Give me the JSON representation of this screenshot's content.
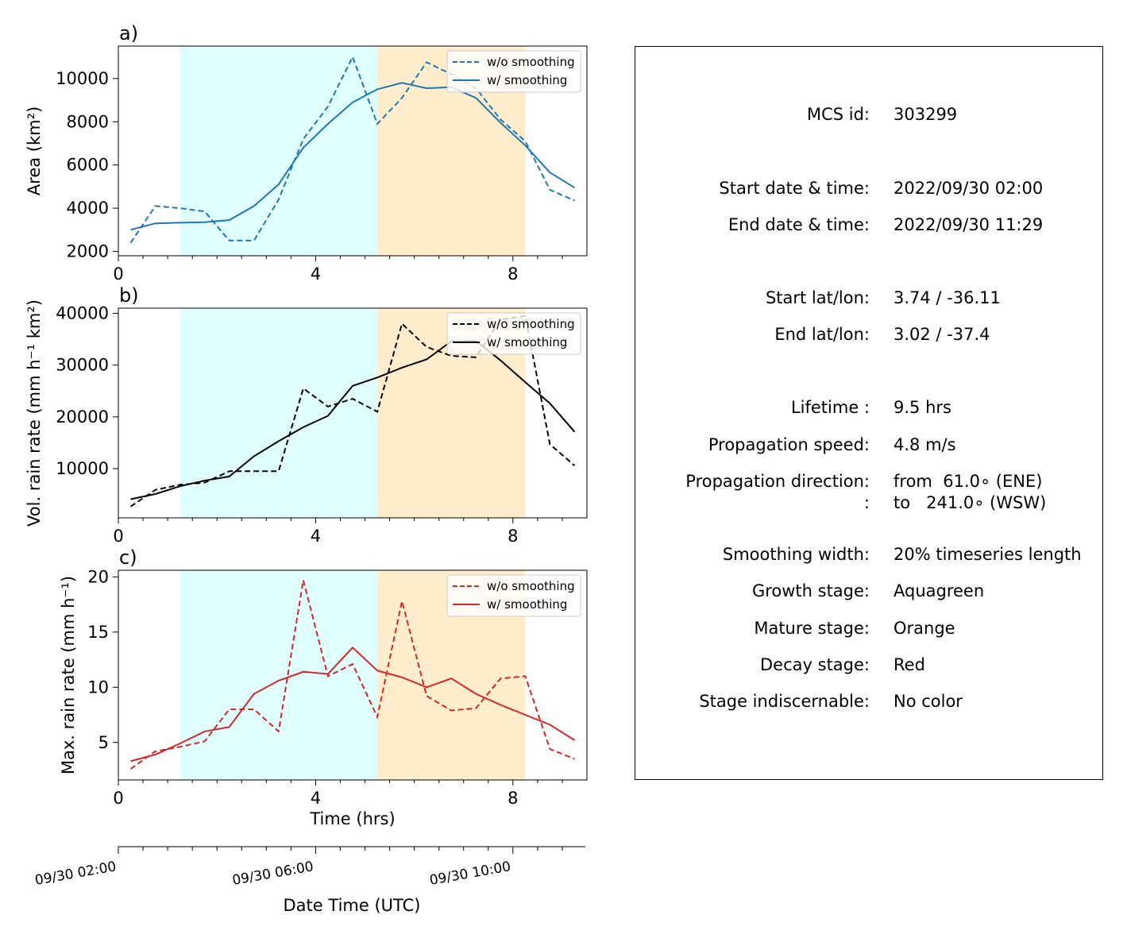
{
  "chart_data": [
    {
      "type": "line",
      "panel_label": "a)",
      "ylabel": "Area  (km²)",
      "xlabel": "",
      "xlim": [
        0,
        9.5
      ],
      "ylim": [
        1800,
        11500
      ],
      "xticks": [
        0,
        4,
        8
      ],
      "yticks": [
        2000,
        4000,
        6000,
        8000,
        10000
      ],
      "x": [
        0.25,
        0.75,
        1.25,
        1.75,
        2.25,
        2.75,
        3.25,
        3.75,
        4.25,
        4.75,
        5.25,
        5.75,
        6.25,
        6.75,
        7.25,
        7.75,
        8.25,
        8.75,
        9.25
      ],
      "color": "#1f77b4",
      "series": [
        {
          "name": "w/o smoothing",
          "dash": true,
          "values": [
            2400,
            4100,
            4000,
            3850,
            2500,
            2500,
            4400,
            7200,
            8700,
            11000,
            7900,
            9100,
            10750,
            10200,
            9550,
            8100,
            7100,
            4850,
            4350
          ]
        },
        {
          "name": "w/ smoothing",
          "dash": false,
          "values": [
            3000,
            3300,
            3330,
            3350,
            3450,
            4100,
            5100,
            6800,
            7900,
            8900,
            9500,
            9800,
            9550,
            9600,
            9100,
            7950,
            6900,
            5650,
            4950
          ]
        }
      ]
    },
    {
      "type": "line",
      "panel_label": "b)",
      "ylabel": "Vol. rain rate (mm h⁻¹ km²)",
      "xlabel": "",
      "xlim": [
        0,
        9.5
      ],
      "ylim": [
        500,
        41000
      ],
      "xticks": [
        0,
        4,
        8
      ],
      "yticks": [
        10000,
        20000,
        30000,
        40000
      ],
      "x": [
        0.25,
        0.75,
        1.25,
        1.75,
        2.25,
        2.75,
        3.25,
        3.75,
        4.25,
        4.75,
        5.25,
        5.75,
        6.25,
        6.75,
        7.25,
        7.75,
        8.25,
        8.75,
        9.25
      ],
      "color": "#000000",
      "series": [
        {
          "name": "w/o smoothing",
          "dash": true,
          "values": [
            2700,
            5900,
            6900,
            7300,
            9500,
            9500,
            9500,
            25500,
            22000,
            23500,
            21000,
            38000,
            33500,
            31800,
            31500,
            38800,
            39500,
            14700,
            10600
          ]
        },
        {
          "name": "w/ smoothing",
          "dash": false,
          "values": [
            4100,
            5100,
            6600,
            7700,
            8500,
            12400,
            15300,
            18000,
            20200,
            26000,
            27600,
            29500,
            31100,
            34600,
            34700,
            30900,
            26700,
            22600,
            17100
          ]
        }
      ]
    },
    {
      "type": "line",
      "panel_label": "c)",
      "ylabel": "Max. rain rate  (mm h⁻¹)",
      "xlabel": "Time (hrs)",
      "xlim": [
        0,
        9.5
      ],
      "ylim": [
        1.6,
        20.6
      ],
      "xticks": [
        0,
        4,
        8
      ],
      "yticks": [
        5,
        10,
        15,
        20
      ],
      "x": [
        0.25,
        0.75,
        1.25,
        1.75,
        2.25,
        2.75,
        3.25,
        3.75,
        4.25,
        4.75,
        5.25,
        5.75,
        6.25,
        6.75,
        7.25,
        7.75,
        8.25,
        8.75,
        9.25
      ],
      "color": "#d62728",
      "series": [
        {
          "name": "w/o smoothing",
          "dash": true,
          "values": [
            2.6,
            4.2,
            4.6,
            5.1,
            8.0,
            8.0,
            6.0,
            19.7,
            11.0,
            12.1,
            7.3,
            17.8,
            9.2,
            7.9,
            8.1,
            10.8,
            11.0,
            4.4,
            3.5
          ]
        },
        {
          "name": "w/ smoothing",
          "dash": false,
          "values": [
            3.3,
            3.9,
            4.9,
            6.0,
            6.4,
            9.4,
            10.6,
            11.4,
            11.2,
            13.6,
            11.5,
            10.9,
            10.0,
            10.8,
            9.4,
            8.4,
            7.5,
            6.6,
            5.2
          ]
        }
      ]
    }
  ],
  "stages": {
    "growth": {
      "start": 1.25,
      "end": 5.25,
      "color": "#e0ffff"
    },
    "mature": {
      "start": 5.25,
      "end": 8.25,
      "color": "#ffedcc"
    }
  },
  "datetime_axis": {
    "xlabel": "Date Time (UTC)",
    "tick_hours": [
      0,
      4,
      8
    ],
    "tick_labels": [
      "09/30 02:00",
      "09/30 06:00",
      "09/30 10:00"
    ]
  },
  "info": {
    "rows": [
      {
        "key": "MCS id:",
        "value": "303299"
      },
      {
        "key": "Start date & time:",
        "value": "2022/09/30 02:00"
      },
      {
        "key": "End date & time:",
        "value": "2022/09/30 11:29"
      },
      {
        "key": "Start lat/lon:",
        "value": "3.74 / -36.11"
      },
      {
        "key": "End lat/lon:",
        "value": "3.02 / -37.4"
      },
      {
        "key": "Lifetime :",
        "value": "9.5 hrs"
      },
      {
        "key": "Propagation speed:",
        "value": "4.8 m/s"
      },
      {
        "key": "Propagation direction:",
        "value": "from  61.0∘ (ENE)"
      },
      {
        "key": ":",
        "value": "to   241.0∘ (WSW)"
      },
      {
        "key": "Smoothing width:",
        "value": "20% timeseries length"
      },
      {
        "key": "Growth stage:",
        "value": "Aquagreen"
      },
      {
        "key": "Mature stage:",
        "value": "Orange"
      },
      {
        "key": "Decay stage:",
        "value": "Red"
      },
      {
        "key": "Stage indiscernable:",
        "value": "No color"
      }
    ]
  }
}
